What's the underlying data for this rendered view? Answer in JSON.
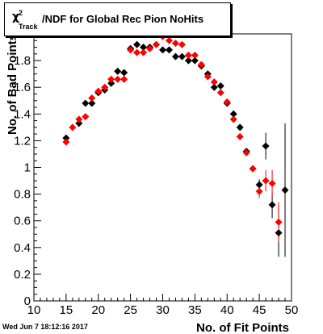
{
  "title": {
    "symbol": "χ",
    "superscript": "2",
    "subscript": "Track",
    "rest": "/NDF for Global Rec Pion NoHits"
  },
  "timestamp": "Wed Jun  7 18:12:16 2017",
  "colors": {
    "series_black": "#000000",
    "series_red": "#ff0000"
  },
  "chart_data": {
    "type": "scatter",
    "title": "χ²Track/NDF for Global Rec Pion NoHits",
    "xlabel": "No. of Fit Points",
    "ylabel": "No. of Bad Points",
    "xlim": [
      10,
      50
    ],
    "ylim": [
      0,
      2
    ],
    "xticks": [
      10,
      15,
      20,
      25,
      30,
      35,
      40,
      45,
      50
    ],
    "yticks": [
      0,
      0.2,
      0.4,
      0.6,
      0.8,
      1,
      1.2,
      1.4,
      1.6,
      1.8,
      2
    ],
    "grid": false,
    "series": [
      {
        "color": "#000000",
        "points": [
          {
            "x": 15,
            "y": 1.22
          },
          {
            "x": 17,
            "y": 1.33
          },
          {
            "x": 18,
            "y": 1.48
          },
          {
            "x": 19,
            "y": 1.48
          },
          {
            "x": 20,
            "y": 1.56
          },
          {
            "x": 21,
            "y": 1.58
          },
          {
            "x": 22,
            "y": 1.63
          },
          {
            "x": 23,
            "y": 1.72
          },
          {
            "x": 24,
            "y": 1.71
          },
          {
            "x": 25,
            "y": 1.89
          },
          {
            "x": 26,
            "y": 1.92
          },
          {
            "x": 27,
            "y": 1.9
          },
          {
            "x": 28,
            "y": 1.9
          },
          {
            "x": 29,
            "y": 1.92
          },
          {
            "x": 30,
            "y": 1.88
          },
          {
            "x": 31,
            "y": 1.88
          },
          {
            "x": 32,
            "y": 1.83
          },
          {
            "x": 33,
            "y": 1.83
          },
          {
            "x": 34,
            "y": 1.8
          },
          {
            "x": 35,
            "y": 1.8
          },
          {
            "x": 36,
            "y": 1.76
          },
          {
            "x": 37,
            "y": 1.7
          },
          {
            "x": 38,
            "y": 1.6
          },
          {
            "x": 39,
            "y": 1.61
          },
          {
            "x": 40,
            "y": 1.48
          },
          {
            "x": 41,
            "y": 1.4
          },
          {
            "x": 42,
            "y": 1.3
          },
          {
            "x": 43,
            "y": 1.12
          },
          {
            "x": 44,
            "y": 0.99
          },
          {
            "x": 45,
            "y": 0.87,
            "err": 0.04
          },
          {
            "x": 46,
            "y": 1.16,
            "err": 0.1
          },
          {
            "x": 47,
            "y": 0.72,
            "err": 0.1
          },
          {
            "x": 48,
            "y": 0.51,
            "err": 0.18
          },
          {
            "x": 49,
            "y": 0.83,
            "err": 0.5
          }
        ]
      },
      {
        "color": "#ff0000",
        "points": [
          {
            "x": 15,
            "y": 1.19
          },
          {
            "x": 16,
            "y": 1.3
          },
          {
            "x": 17,
            "y": 1.36
          },
          {
            "x": 18,
            "y": 1.38
          },
          {
            "x": 19,
            "y": 1.52
          },
          {
            "x": 20,
            "y": 1.57
          },
          {
            "x": 21,
            "y": 1.6
          },
          {
            "x": 22,
            "y": 1.66
          },
          {
            "x": 23,
            "y": 1.66
          },
          {
            "x": 24,
            "y": 1.66
          },
          {
            "x": 25,
            "y": 1.88
          },
          {
            "x": 26,
            "y": 1.86
          },
          {
            "x": 27,
            "y": 1.86
          },
          {
            "x": 28,
            "y": 1.89
          },
          {
            "x": 29,
            "y": 1.92
          },
          {
            "x": 30,
            "y": 1.98
          },
          {
            "x": 31,
            "y": 1.95
          },
          {
            "x": 32,
            "y": 1.93
          },
          {
            "x": 33,
            "y": 1.92
          },
          {
            "x": 34,
            "y": 1.84
          },
          {
            "x": 35,
            "y": 1.84
          },
          {
            "x": 36,
            "y": 1.77
          },
          {
            "x": 37,
            "y": 1.68
          },
          {
            "x": 38,
            "y": 1.64
          },
          {
            "x": 39,
            "y": 1.56
          },
          {
            "x": 40,
            "y": 1.49
          },
          {
            "x": 41,
            "y": 1.36
          },
          {
            "x": 42,
            "y": 1.23
          },
          {
            "x": 43,
            "y": 1.11
          },
          {
            "x": 44,
            "y": 0.99
          },
          {
            "x": 45,
            "y": 0.82,
            "err": 0.05
          },
          {
            "x": 46,
            "y": 0.9,
            "err": 0.08
          },
          {
            "x": 47,
            "y": 0.88,
            "err": 0.1
          },
          {
            "x": 48,
            "y": 0.59,
            "err": 0.15
          }
        ]
      }
    ]
  }
}
